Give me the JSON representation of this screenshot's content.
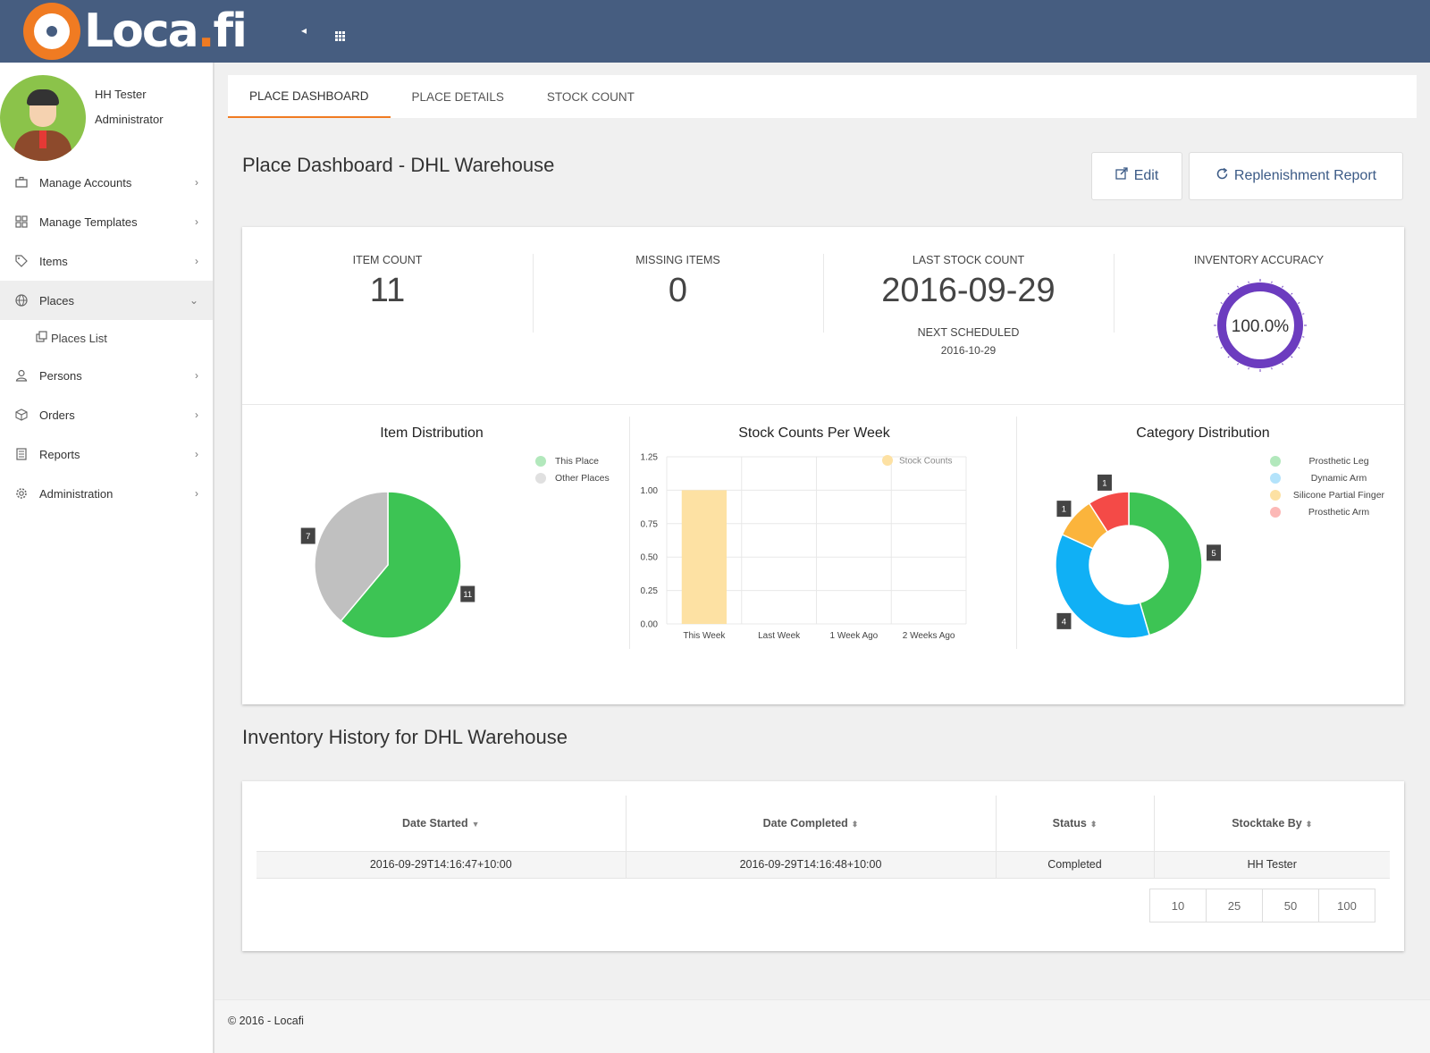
{
  "header": {
    "brand_main": "Loca",
    "brand_dot": ".",
    "brand_tail": "fi"
  },
  "profile": {
    "name": "HH Tester",
    "role": "Administrator"
  },
  "sidebar": {
    "items": [
      {
        "label": "Manage Accounts",
        "icon": "briefcase-icon"
      },
      {
        "label": "Manage Templates",
        "icon": "grid-icon"
      },
      {
        "label": "Items",
        "icon": "tag-icon"
      },
      {
        "label": "Places",
        "icon": "globe-icon"
      },
      {
        "label": "Persons",
        "icon": "person-icon"
      },
      {
        "label": "Orders",
        "icon": "box-icon"
      },
      {
        "label": "Reports",
        "icon": "report-icon"
      },
      {
        "label": "Administration",
        "icon": "gear-icon"
      }
    ],
    "subitem": {
      "label": "Places List",
      "icon": "copy-icon"
    }
  },
  "tabs": [
    "PLACE DASHBOARD",
    "PLACE DETAILS",
    "STOCK COUNT"
  ],
  "page": {
    "title": "Place Dashboard - DHL Warehouse",
    "edit_label": "Edit",
    "replenish_label": "Replenishment Report"
  },
  "stats": {
    "item_count_label": "ITEM COUNT",
    "item_count": "11",
    "missing_label": "MISSING ITEMS",
    "missing": "0",
    "last_count_label": "LAST STOCK COUNT",
    "last_count": "2016-09-29",
    "next_label": "NEXT SCHEDULED",
    "next": "2016-10-29",
    "accuracy_label": "INVENTORY ACCURACY",
    "accuracy": "100.0%",
    "accuracy_value": 1.0
  },
  "chart_data": [
    {
      "type": "pie",
      "title": "Item Distribution",
      "labels": [
        "This Place",
        "Other Places"
      ],
      "values": [
        11,
        7
      ],
      "colors": [
        "#3dc454",
        "#c0c0c0"
      ],
      "legend_colors": [
        "#b2e8bc",
        "#e0e0e0"
      ]
    },
    {
      "type": "bar",
      "title": "Stock Counts Per Week",
      "categories": [
        "This Week",
        "Last Week",
        "1 Week Ago",
        "2 Weeks Ago"
      ],
      "series": [
        {
          "name": "Stock Counts",
          "values": [
            1,
            0,
            0,
            0
          ]
        }
      ],
      "ylim": [
        0,
        1.25
      ],
      "yticks": [
        "0.00",
        "0.25",
        "0.50",
        "0.75",
        "1.00",
        "1.25"
      ],
      "color": "#fde1a3"
    },
    {
      "type": "pie",
      "title": "Category Distribution",
      "labels": [
        "Prosthetic Leg",
        "Dynamic Arm",
        "Silicone Partial Finger",
        "Prosthetic Arm"
      ],
      "values": [
        5,
        4,
        1,
        1
      ],
      "colors": [
        "#3dc454",
        "#10b0f5",
        "#fbb43c",
        "#f44a47"
      ],
      "legend_colors": [
        "#b2e8bc",
        "#b3e3fb",
        "#fde1a3",
        "#fcb8b6"
      ]
    }
  ],
  "history": {
    "title": "Inventory History for DHL Warehouse",
    "columns": [
      "Date Started",
      "Date Completed",
      "Status",
      "Stocktake By"
    ],
    "rows": [
      [
        "2016-09-29T14:16:47+10:00",
        "2016-09-29T14:16:48+10:00",
        "Completed",
        "HH Tester"
      ]
    ],
    "page_sizes": [
      "10",
      "25",
      "50",
      "100"
    ]
  },
  "footer": "© 2016 - Locafi"
}
